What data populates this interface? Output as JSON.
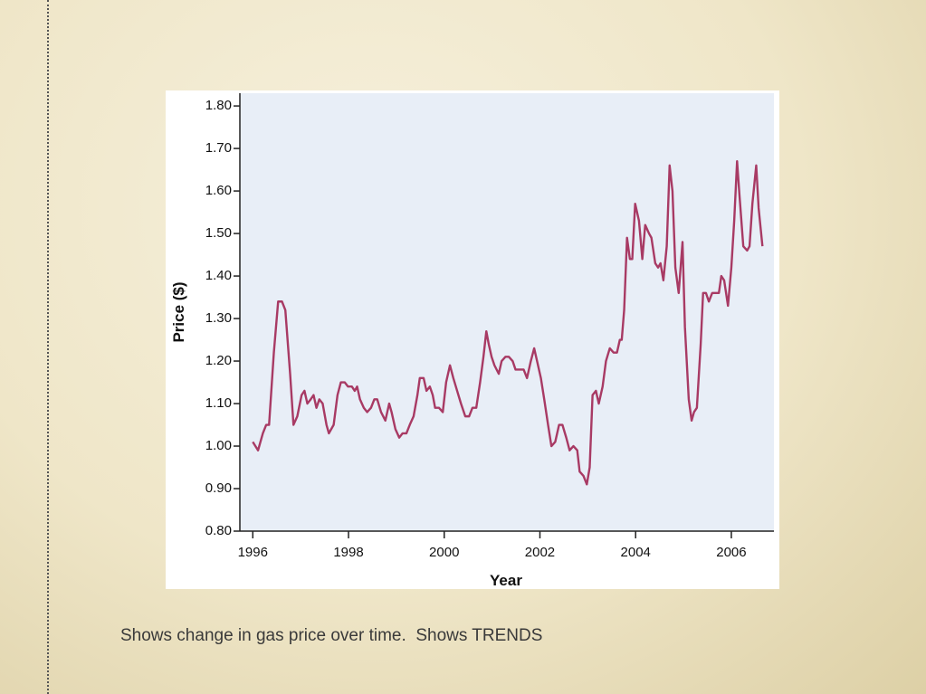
{
  "caption": "Shows change in gas price over time.  Shows TRENDS",
  "chart_data": {
    "type": "line",
    "xlabel": "Year",
    "ylabel": "Price ($)",
    "xlim": [
      1995.73,
      2006.89
    ],
    "ylim": [
      0.8,
      1.83
    ],
    "xticks": [
      1996,
      1998,
      2000,
      2002,
      2004,
      2006
    ],
    "yticks": [
      {
        "value": 0.8,
        "label": "0.80"
      },
      {
        "value": 0.9,
        "label": "0.90"
      },
      {
        "value": 1.0,
        "label": "1.00"
      },
      {
        "value": 1.1,
        "label": "1.10"
      },
      {
        "value": 1.2,
        "label": "1.20"
      },
      {
        "value": 1.3,
        "label": "1.30"
      },
      {
        "value": 1.4,
        "label": "1.40"
      },
      {
        "value": 1.5,
        "label": "1.50"
      },
      {
        "value": 1.6,
        "label": "1.60"
      },
      {
        "value": 1.7,
        "label": "1.70"
      },
      {
        "value": 1.8,
        "label": "1.80"
      }
    ],
    "x": [
      1996.0,
      1996.11,
      1996.21,
      1996.28,
      1996.34,
      1996.44,
      1996.53,
      1996.61,
      1996.68,
      1996.78,
      1996.85,
      1996.93,
      1997.02,
      1997.08,
      1997.14,
      1997.21,
      1997.27,
      1997.33,
      1997.39,
      1997.46,
      1997.54,
      1997.59,
      1997.69,
      1997.77,
      1997.84,
      1997.92,
      1997.99,
      1998.07,
      1998.13,
      1998.18,
      1998.24,
      1998.32,
      1998.39,
      1998.47,
      1998.54,
      1998.6,
      1998.68,
      1998.77,
      1998.85,
      1998.9,
      1998.98,
      1999.06,
      1999.13,
      1999.21,
      1999.28,
      1999.36,
      1999.44,
      1999.49,
      1999.57,
      1999.63,
      1999.7,
      1999.76,
      1999.81,
      1999.89,
      1999.97,
      2000.04,
      2000.12,
      2000.19,
      2000.27,
      2000.35,
      2000.44,
      2000.52,
      2000.59,
      2000.67,
      2000.75,
      2000.82,
      2000.88,
      2000.93,
      2000.99,
      2001.05,
      2001.14,
      2001.2,
      2001.28,
      2001.35,
      2001.43,
      2001.49,
      2001.56,
      2001.66,
      2001.73,
      2001.81,
      2001.88,
      2001.94,
      2002.02,
      2002.09,
      2002.17,
      2002.24,
      2002.32,
      2002.4,
      2002.47,
      2002.55,
      2002.62,
      2002.7,
      2002.78,
      2002.83,
      2002.91,
      2002.98,
      2003.04,
      2003.1,
      2003.17,
      2003.23,
      2003.31,
      2003.38,
      2003.46,
      2003.54,
      2003.61,
      2003.67,
      2003.71,
      2003.76,
      2003.82,
      2003.88,
      2003.93,
      2003.99,
      2004.07,
      2004.14,
      2004.2,
      2004.28,
      2004.33,
      2004.41,
      2004.47,
      2004.52,
      2004.58,
      2004.65,
      2004.71,
      2004.77,
      2004.83,
      2004.9,
      2004.98,
      2005.03,
      2005.11,
      2005.17,
      2005.22,
      2005.28,
      2005.36,
      2005.41,
      2005.47,
      2005.53,
      2005.6,
      2005.68,
      2005.74,
      2005.79,
      2005.85,
      2005.93,
      2006.0,
      2006.06,
      2006.12,
      2006.17,
      2006.25,
      2006.33,
      2006.38,
      2006.44,
      2006.52,
      2006.57,
      2006.65
    ],
    "series": [
      {
        "color": "#a83a64",
        "values": [
          1.01,
          0.99,
          1.03,
          1.05,
          1.05,
          1.22,
          1.34,
          1.34,
          1.32,
          1.17,
          1.05,
          1.07,
          1.12,
          1.13,
          1.1,
          1.11,
          1.12,
          1.09,
          1.11,
          1.1,
          1.05,
          1.03,
          1.05,
          1.12,
          1.15,
          1.15,
          1.14,
          1.14,
          1.13,
          1.14,
          1.11,
          1.09,
          1.08,
          1.09,
          1.11,
          1.11,
          1.08,
          1.06,
          1.1,
          1.08,
          1.04,
          1.02,
          1.03,
          1.03,
          1.05,
          1.07,
          1.12,
          1.16,
          1.16,
          1.13,
          1.14,
          1.12,
          1.09,
          1.09,
          1.08,
          1.15,
          1.19,
          1.16,
          1.13,
          1.1,
          1.07,
          1.07,
          1.09,
          1.09,
          1.15,
          1.21,
          1.27,
          1.24,
          1.21,
          1.19,
          1.17,
          1.2,
          1.21,
          1.21,
          1.2,
          1.18,
          1.18,
          1.18,
          1.16,
          1.2,
          1.23,
          1.2,
          1.16,
          1.11,
          1.05,
          1.0,
          1.01,
          1.05,
          1.05,
          1.02,
          0.99,
          1.0,
          0.99,
          0.94,
          0.93,
          0.91,
          0.95,
          1.12,
          1.13,
          1.1,
          1.14,
          1.2,
          1.23,
          1.22,
          1.22,
          1.25,
          1.25,
          1.32,
          1.49,
          1.44,
          1.44,
          1.57,
          1.53,
          1.44,
          1.52,
          1.5,
          1.49,
          1.43,
          1.42,
          1.43,
          1.39,
          1.47,
          1.66,
          1.6,
          1.42,
          1.36,
          1.48,
          1.28,
          1.11,
          1.06,
          1.08,
          1.09,
          1.24,
          1.36,
          1.36,
          1.34,
          1.36,
          1.36,
          1.36,
          1.4,
          1.39,
          1.33,
          1.42,
          1.53,
          1.67,
          1.59,
          1.47,
          1.46,
          1.47,
          1.57,
          1.66,
          1.56,
          1.47
        ]
      }
    ]
  }
}
